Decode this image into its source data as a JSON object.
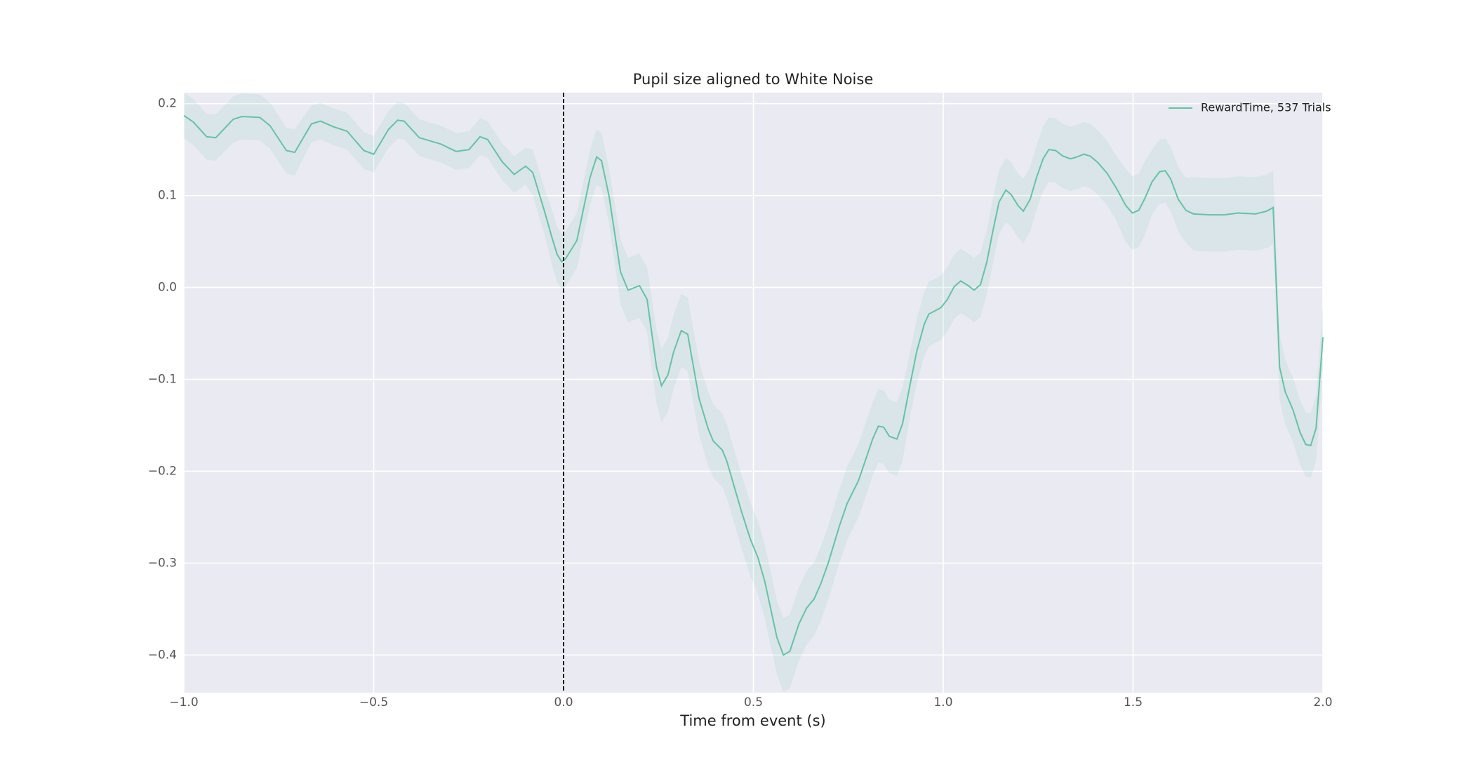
{
  "chart_data": {
    "type": "line",
    "title": "Pupil size aligned to White Noise",
    "x_label": "Time from event (s)",
    "x": [
      -1.0,
      -0.975,
      -0.94,
      -0.916,
      -0.87,
      -0.847,
      -0.8,
      -0.773,
      -0.73,
      -0.708,
      -0.664,
      -0.64,
      -0.607,
      -0.57,
      -0.526,
      -0.5,
      -0.461,
      -0.437,
      -0.42,
      -0.38,
      -0.323,
      -0.283,
      -0.249,
      -0.22,
      -0.2,
      -0.162,
      -0.13,
      -0.1,
      -0.081,
      -0.051,
      -0.031,
      -0.017,
      -0.005,
      0.005,
      0.035,
      0.07,
      0.087,
      0.1,
      0.12,
      0.15,
      0.17,
      0.2,
      0.22,
      0.245,
      0.258,
      0.275,
      0.29,
      0.31,
      0.327,
      0.357,
      0.381,
      0.394,
      0.418,
      0.43,
      0.468,
      0.492,
      0.512,
      0.53,
      0.562,
      0.579,
      0.596,
      0.62,
      0.64,
      0.66,
      0.678,
      0.697,
      0.727,
      0.747,
      0.777,
      0.796,
      0.814,
      0.829,
      0.843,
      0.858,
      0.878,
      0.893,
      0.913,
      0.93,
      0.95,
      0.962,
      0.994,
      1.011,
      1.029,
      1.046,
      1.066,
      1.081,
      1.098,
      1.115,
      1.13,
      1.147,
      1.165,
      1.179,
      1.197,
      1.211,
      1.229,
      1.246,
      1.263,
      1.278,
      1.296,
      1.315,
      1.335,
      1.352,
      1.37,
      1.387,
      1.407,
      1.432,
      1.456,
      1.481,
      1.498,
      1.515,
      1.53,
      1.55,
      1.57,
      1.585,
      1.599,
      1.619,
      1.639,
      1.659,
      1.703,
      1.74,
      1.777,
      1.822,
      1.852,
      1.869,
      1.886,
      1.901,
      1.921,
      1.94,
      1.955,
      1.968,
      1.982,
      2.0
    ],
    "series": [
      {
        "name": "RewardTime, 537 Trials",
        "color": "#66c2a5",
        "values": [
          0.187,
          0.18,
          0.164,
          0.163,
          0.183,
          0.186,
          0.185,
          0.176,
          0.149,
          0.147,
          0.178,
          0.181,
          0.175,
          0.17,
          0.149,
          0.145,
          0.172,
          0.182,
          0.181,
          0.163,
          0.156,
          0.148,
          0.15,
          0.164,
          0.161,
          0.137,
          0.123,
          0.132,
          0.125,
          0.084,
          0.055,
          0.036,
          0.028,
          0.031,
          0.051,
          0.12,
          0.142,
          0.138,
          0.099,
          0.017,
          -0.003,
          0.002,
          -0.013,
          -0.087,
          -0.107,
          -0.095,
          -0.07,
          -0.047,
          -0.051,
          -0.121,
          -0.154,
          -0.167,
          -0.177,
          -0.189,
          -0.243,
          -0.274,
          -0.294,
          -0.32,
          -0.381,
          -0.4,
          -0.396,
          -0.366,
          -0.349,
          -0.339,
          -0.322,
          -0.3,
          -0.259,
          -0.235,
          -0.21,
          -0.187,
          -0.165,
          -0.151,
          -0.152,
          -0.162,
          -0.165,
          -0.148,
          -0.105,
          -0.07,
          -0.04,
          -0.029,
          -0.022,
          -0.013,
          0.001,
          0.007,
          0.002,
          -0.003,
          0.003,
          0.028,
          0.06,
          0.093,
          0.106,
          0.101,
          0.089,
          0.083,
          0.096,
          0.12,
          0.14,
          0.15,
          0.149,
          0.143,
          0.14,
          0.142,
          0.145,
          0.143,
          0.136,
          0.124,
          0.108,
          0.089,
          0.081,
          0.084,
          0.096,
          0.115,
          0.126,
          0.127,
          0.118,
          0.096,
          0.084,
          0.08,
          0.079,
          0.079,
          0.081,
          0.08,
          0.083,
          0.087,
          -0.087,
          -0.114,
          -0.133,
          -0.158,
          -0.171,
          -0.172,
          -0.153,
          -0.054
        ],
        "error": [
          0.025,
          0.025,
          0.025,
          0.025,
          0.025,
          0.025,
          0.025,
          0.025,
          0.025,
          0.025,
          0.02,
          0.02,
          0.02,
          0.02,
          0.02,
          0.02,
          0.02,
          0.02,
          0.02,
          0.02,
          0.02,
          0.02,
          0.02,
          0.02,
          0.02,
          0.02,
          0.02,
          0.02,
          0.025,
          0.025,
          0.03,
          0.03,
          0.03,
          0.03,
          0.03,
          0.03,
          0.03,
          0.03,
          0.03,
          0.035,
          0.035,
          0.035,
          0.035,
          0.04,
          0.04,
          0.04,
          0.04,
          0.04,
          0.04,
          0.04,
          0.04,
          0.04,
          0.04,
          0.04,
          0.04,
          0.04,
          0.04,
          0.04,
          0.04,
          0.04,
          0.04,
          0.04,
          0.04,
          0.04,
          0.04,
          0.04,
          0.04,
          0.04,
          0.04,
          0.04,
          0.04,
          0.04,
          0.04,
          0.04,
          0.04,
          0.04,
          0.035,
          0.035,
          0.035,
          0.035,
          0.035,
          0.035,
          0.035,
          0.035,
          0.035,
          0.035,
          0.035,
          0.035,
          0.035,
          0.035,
          0.035,
          0.035,
          0.035,
          0.035,
          0.035,
          0.035,
          0.035,
          0.035,
          0.035,
          0.035,
          0.035,
          0.035,
          0.035,
          0.035,
          0.035,
          0.035,
          0.035,
          0.04,
          0.04,
          0.04,
          0.04,
          0.035,
          0.035,
          0.035,
          0.035,
          0.035,
          0.035,
          0.04,
          0.04,
          0.04,
          0.04,
          0.04,
          0.04,
          0.04,
          0.035,
          0.035,
          0.035,
          0.035,
          0.035,
          0.035,
          0.035,
          0.035
        ]
      }
    ],
    "vline": 0,
    "xlim": [
      -1.0,
      2.0
    ],
    "xticks": [
      {
        "value": -1.0,
        "label": "−1.0"
      },
      {
        "value": -0.5,
        "label": "−0.5"
      },
      {
        "value": 0,
        "label": "0.0"
      },
      0.5,
      {
        "value": 1.0,
        "label": "1.0"
      },
      1.5,
      {
        "value": 2.0,
        "label": "2.0"
      }
    ],
    "ylim": [
      -0.441,
      0.212
    ],
    "yticks": [
      {
        "value": -0.4,
        "label": "−0.4"
      },
      {
        "value": -0.3,
        "label": "−0.3"
      },
      {
        "value": -0.2,
        "label": "−0.2"
      },
      {
        "value": -0.1,
        "label": "−0.1"
      },
      {
        "value": 0,
        "label": "0.0"
      },
      0.1,
      0.2
    ],
    "grid": true,
    "legend": "upper right"
  }
}
